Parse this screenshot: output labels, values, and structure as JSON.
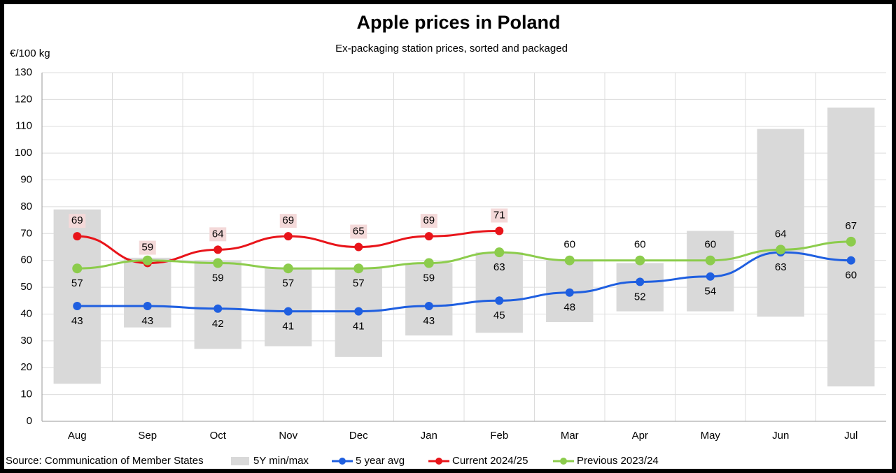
{
  "chart_data": {
    "type": "line",
    "title": "Apple prices in Poland",
    "subtitle": "Ex-packaging station prices, sorted and packaged",
    "y_label": "€/100 kg",
    "source": "Source: Communication  of Member States",
    "categories": [
      "Aug",
      "Sep",
      "Oct",
      "Nov",
      "Dec",
      "Jan",
      "Feb",
      "Mar",
      "Apr",
      "May",
      "Jun",
      "Jul"
    ],
    "ylim": [
      0,
      130
    ],
    "yticks": [
      0,
      10,
      20,
      30,
      40,
      50,
      60,
      70,
      80,
      90,
      100,
      110,
      120,
      130
    ],
    "grid": true,
    "range": {
      "name": "5Y min/max",
      "color": "#d9d9d9",
      "low": [
        14,
        35,
        27,
        28,
        24,
        32,
        33,
        37,
        41,
        41,
        39,
        13
      ],
      "high": [
        79,
        61,
        60,
        57,
        57,
        59,
        63,
        60,
        59,
        71,
        109,
        117
      ]
    },
    "series": [
      {
        "name": "5 year avg",
        "color": "#1f5fe0",
        "values": [
          43,
          43,
          42,
          41,
          41,
          43,
          45,
          48,
          52,
          54,
          63,
          60
        ]
      },
      {
        "name": "Current 2024/25",
        "color": "#e8141a",
        "values": [
          69,
          59,
          64,
          69,
          65,
          69,
          71,
          null,
          null,
          null,
          null,
          null
        ]
      },
      {
        "name": "Previous 2023/24",
        "color": "#8ccc4c",
        "values": [
          57,
          60,
          59,
          57,
          57,
          59,
          63,
          60,
          60,
          60,
          64,
          67
        ],
        "value_labels": [
          "57",
          null,
          "59",
          "57",
          "57",
          "59",
          "63",
          "60",
          "60",
          "60",
          "64",
          "67"
        ]
      }
    ]
  }
}
